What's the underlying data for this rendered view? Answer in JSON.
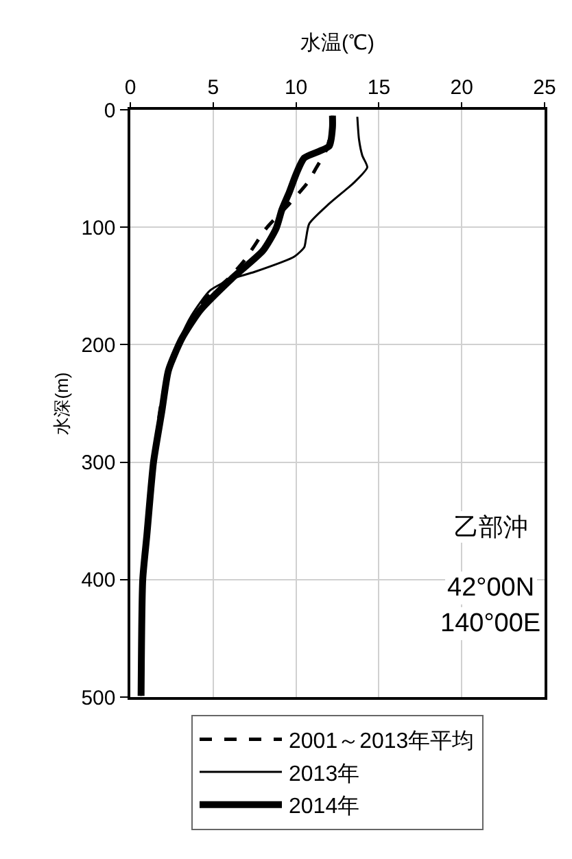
{
  "chart_data": {
    "type": "line",
    "xlabel": "水温(℃)",
    "ylabel": "水深(m)",
    "xlim": [
      0,
      25
    ],
    "xticks": [
      0,
      5,
      10,
      15,
      20,
      25
    ],
    "ylim": [
      500,
      0
    ],
    "yticks": [
      0,
      100,
      200,
      300,
      400,
      500
    ],
    "grid": true,
    "legend": "bottom",
    "marker": "none",
    "annotations": [
      "乙部沖",
      "42°00N",
      "140°00E"
    ],
    "series": [
      {
        "name": "2001～2013年平均",
        "color": "#000000",
        "line_style": "dashed",
        "x": [
          12.2,
          12.1,
          11.8,
          11.2,
          10.7,
          9.6,
          8.2,
          6.9,
          5.9,
          4.6,
          3.4,
          2.4,
          1.8,
          1.4,
          1.0,
          0.75,
          0.6
        ],
        "values": [
          5,
          20,
          35,
          50,
          62,
          80,
          101,
          128,
          144,
          160,
          185,
          215,
          255,
          300,
          360,
          400,
          499
        ]
      },
      {
        "name": "2013年",
        "color": "#000000",
        "line_style": "solid",
        "x": [
          13.7,
          13.8,
          14.0,
          14.3,
          13.5,
          12.0,
          10.8,
          10.6,
          10.5,
          9.9,
          7.5,
          6.1,
          4.8,
          3.7,
          3.0,
          2.3,
          1.9,
          1.4,
          1.0,
          0.75,
          0.65
        ],
        "values": [
          6,
          25,
          39,
          49,
          62,
          80,
          97,
          110,
          117,
          125,
          138,
          144,
          154,
          175,
          195,
          222,
          257,
          300,
          362,
          400,
          499
        ]
      },
      {
        "name": "2014年",
        "color": "#000000",
        "line_style": "solid",
        "x": [
          12.2,
          12.2,
          12.0,
          10.5,
          10.0,
          9.6,
          9.15,
          8.8,
          8.0,
          6.1,
          4.2,
          3.1,
          2.3,
          1.9,
          1.4,
          1.0,
          0.75,
          0.65
        ],
        "values": [
          5,
          15,
          31,
          41,
          55,
          70,
          85,
          101,
          120,
          144,
          171,
          195,
          222,
          257,
          300,
          362,
          400,
          499
        ]
      }
    ]
  }
}
